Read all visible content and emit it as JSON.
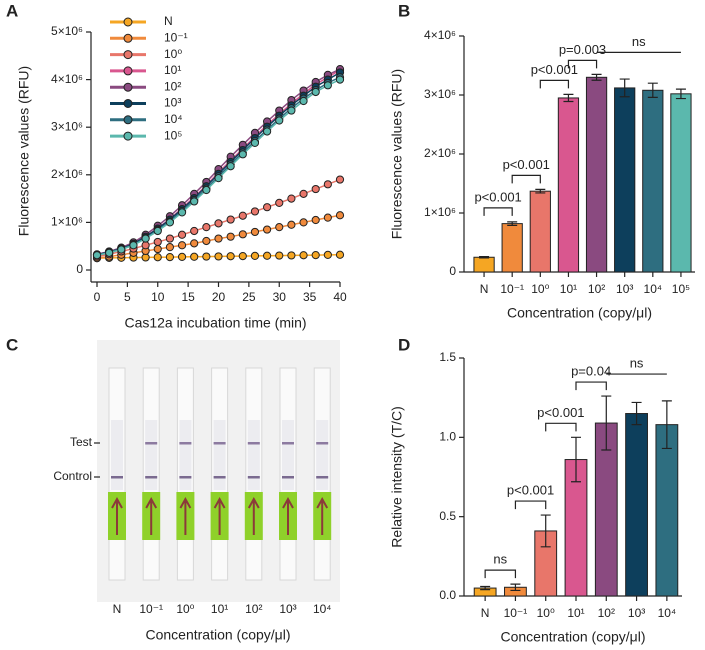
{
  "chart_data": [
    {
      "type": "line",
      "panel_label": "A",
      "x_label": "Cas12a incubation time (min)",
      "y_label": "Fluorescence values (RFU)",
      "x": [
        0,
        2,
        4,
        6,
        8,
        10,
        12,
        14,
        16,
        18,
        20,
        22,
        24,
        26,
        28,
        30,
        32,
        34,
        36,
        38,
        40
      ],
      "xlim": [
        0,
        40
      ],
      "xticks": [
        0,
        5,
        10,
        15,
        20,
        25,
        30,
        35,
        40
      ],
      "ylim": [
        0,
        5000000
      ],
      "yticks": [
        0,
        {
          "value": 1000000,
          "label": "1×10⁶"
        },
        {
          "value": 2000000,
          "label": "2×10⁶"
        },
        {
          "value": 3000000,
          "label": "3×10⁶"
        },
        {
          "value": 4000000,
          "label": "4×10⁶"
        },
        {
          "value": 5000000,
          "label": "5×10⁶"
        }
      ],
      "series": [
        {
          "name": "N",
          "color": "#f5a623",
          "values": [
            250000,
            254000,
            257000,
            261000,
            264000,
            268000,
            271000,
            275000,
            278000,
            282000,
            285000,
            289000,
            292000,
            296000,
            299000,
            303000,
            306000,
            310000,
            313000,
            317000,
            320000
          ]
        },
        {
          "name": "10⁻¹",
          "color": "#f08a3c",
          "values": [
            250000,
            280000,
            320000,
            360000,
            400000,
            440000,
            480000,
            520000,
            560000,
            610000,
            660000,
            700000,
            750000,
            800000,
            850000,
            900000,
            950000,
            1000000,
            1050000,
            1100000,
            1150000
          ]
        },
        {
          "name": "10⁰",
          "color": "#e8766a",
          "values": [
            280000,
            330000,
            390000,
            450000,
            520000,
            590000,
            660000,
            740000,
            820000,
            900000,
            980000,
            1060000,
            1140000,
            1230000,
            1320000,
            1410000,
            1500000,
            1600000,
            1700000,
            1800000,
            1900000
          ]
        },
        {
          "name": "10¹",
          "color": "#d9578f",
          "values": [
            320000,
            380000,
            450000,
            550000,
            700000,
            880000,
            1070000,
            1300000,
            1530000,
            1780000,
            2050000,
            2300000,
            2550000,
            2800000,
            3050000,
            3270000,
            3500000,
            3700000,
            3900000,
            4050000,
            4200000
          ]
        },
        {
          "name": "10²",
          "color": "#8a4a80",
          "values": [
            330000,
            390000,
            470000,
            580000,
            740000,
            930000,
            1130000,
            1360000,
            1600000,
            1850000,
            2120000,
            2380000,
            2630000,
            2880000,
            3120000,
            3350000,
            3570000,
            3770000,
            3950000,
            4100000,
            4220000
          ]
        },
        {
          "name": "10³",
          "color": "#0d3f5c",
          "values": [
            320000,
            380000,
            450000,
            550000,
            700000,
            870000,
            1060000,
            1280000,
            1510000,
            1760000,
            2020000,
            2270000,
            2520000,
            2770000,
            3010000,
            3240000,
            3460000,
            3660000,
            3850000,
            4000000,
            4150000
          ]
        },
        {
          "name": "10⁴",
          "color": "#2e6e80",
          "values": [
            310000,
            370000,
            440000,
            530000,
            670000,
            840000,
            1020000,
            1240000,
            1470000,
            1710000,
            1970000,
            2220000,
            2470000,
            2710000,
            2950000,
            3180000,
            3400000,
            3600000,
            3780000,
            3930000,
            4050000
          ]
        },
        {
          "name": "10⁵",
          "color": "#5bb8ad",
          "values": [
            310000,
            360000,
            430000,
            520000,
            660000,
            820000,
            1000000,
            1210000,
            1440000,
            1680000,
            1930000,
            2180000,
            2430000,
            2670000,
            2910000,
            3140000,
            3350000,
            3550000,
            3740000,
            3880000,
            4000000
          ]
        }
      ]
    },
    {
      "type": "bar",
      "panel_label": "B",
      "x_label": "Concentration (copy/μl)",
      "y_label": "Fluorescence values (RFU)",
      "categories": [
        "N",
        "10⁻¹",
        "10⁰",
        "10¹",
        "10²",
        "10³",
        "10⁴",
        "10⁵"
      ],
      "values": [
        250000,
        820000,
        1370000,
        2950000,
        3300000,
        3120000,
        3080000,
        3020000
      ],
      "errors": [
        10000,
        30000,
        30000,
        60000,
        50000,
        150000,
        120000,
        80000
      ],
      "colors": [
        "#f5a623",
        "#f08a3c",
        "#e8766a",
        "#d9578f",
        "#8a4a80",
        "#0d3f5c",
        "#2e6e80",
        "#5bb8ad"
      ],
      "ylim": [
        0,
        4000000
      ],
      "yticks": [
        0,
        {
          "value": 1000000,
          "label": "1×10⁶"
        },
        {
          "value": 2000000,
          "label": "2×10⁶"
        },
        {
          "value": 3000000,
          "label": "3×10⁶"
        },
        {
          "value": 4000000,
          "label": "4×10⁶"
        }
      ],
      "annotations": [
        {
          "text": "p<0.001",
          "from": "N",
          "to": "10⁻¹",
          "style": "bracket"
        },
        {
          "text": "p<0.001",
          "from": "10⁻¹",
          "to": "10⁰",
          "style": "bracket"
        },
        {
          "text": "p<0.001",
          "from": "10⁰",
          "to": "10¹",
          "style": "bracket"
        },
        {
          "text": "p=0.003",
          "from": "10¹",
          "to": "10²",
          "style": "bracket"
        },
        {
          "text": "ns",
          "from": "10²",
          "to": "10⁵",
          "style": "line"
        }
      ]
    },
    {
      "type": "bar",
      "panel_label": "D",
      "x_label": "Concentration (copy/μl)",
      "y_label": "Relative intensity (T/C)",
      "categories": [
        "N",
        "10⁻¹",
        "10⁰",
        "10¹",
        "10²",
        "10³",
        "10⁴"
      ],
      "values": [
        0.05,
        0.055,
        0.41,
        0.86,
        1.09,
        1.15,
        1.08
      ],
      "errors": [
        0.01,
        0.02,
        0.1,
        0.14,
        0.17,
        0.07,
        0.15
      ],
      "colors": [
        "#f5a623",
        "#f08a3c",
        "#e8766a",
        "#d9578f",
        "#8a4a80",
        "#0d3f5c",
        "#2e6e80"
      ],
      "ylim": [
        0,
        1.5
      ],
      "yticks": [
        {
          "value": 0,
          "label": "0.0"
        },
        0.5,
        {
          "value": 1,
          "label": "1.0"
        },
        1.5
      ],
      "annotations": [
        {
          "text": "ns",
          "from": "N",
          "to": "10⁻¹",
          "style": "bracket"
        },
        {
          "text": "p<0.001",
          "from": "10⁻¹",
          "to": "10⁰",
          "style": "bracket"
        },
        {
          "text": "p<0.001",
          "from": "10⁰",
          "to": "10¹",
          "style": "bracket"
        },
        {
          "text": "p=0.04",
          "from": "10¹",
          "to": "10²",
          "style": "bracket"
        },
        {
          "text": "ns",
          "from": "10²",
          "to": "10⁴",
          "style": "line"
        }
      ]
    }
  ],
  "strip_photo": {
    "panel_label": "C",
    "test_label": "Test",
    "control_label": "Control",
    "categories": [
      "N",
      "10⁻¹",
      "10⁰",
      "10¹",
      "10²",
      "10³",
      "10⁴"
    ],
    "x_label": "Concentration (copy/μl)"
  }
}
